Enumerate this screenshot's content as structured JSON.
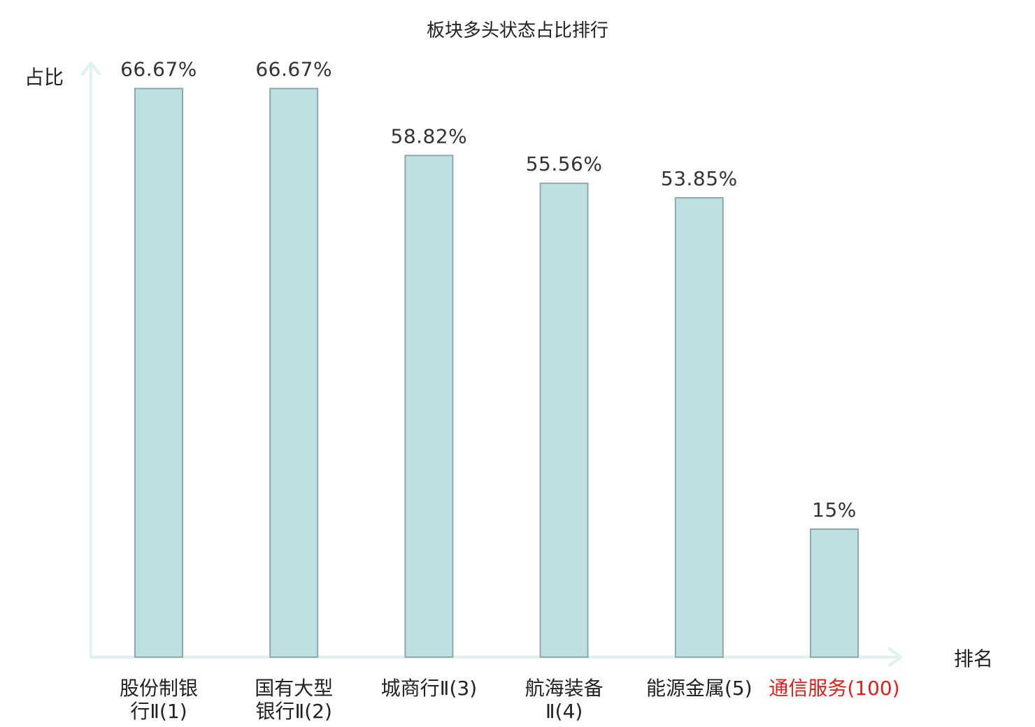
{
  "chart_data": {
    "type": "bar",
    "title": "板块多头状态占比排行",
    "ylabel": "占比",
    "xlabel": "排名",
    "ylim": [
      0,
      70
    ],
    "grid": false,
    "legend": "none",
    "categories": [
      {
        "name": "股份制银行Ⅱ",
        "rank": "(1)",
        "lines": [
          "股份制银",
          "行Ⅱ(1)"
        ],
        "highlight": false
      },
      {
        "name": "国有大型银行Ⅱ",
        "rank": "(2)",
        "lines": [
          "国有大型",
          "银行Ⅱ(2)"
        ],
        "highlight": false
      },
      {
        "name": "城商行Ⅱ",
        "rank": "(3)",
        "lines": [
          "城商行Ⅱ(3)"
        ],
        "highlight": false
      },
      {
        "name": "航海装备Ⅱ",
        "rank": "(4)",
        "lines": [
          "航海装备",
          "Ⅱ(4)"
        ],
        "highlight": false
      },
      {
        "name": "能源金属",
        "rank": "(5)",
        "lines": [
          "能源金属(5)"
        ],
        "highlight": false
      },
      {
        "name": "通信服务",
        "rank": "(100)",
        "lines": [
          "通信服务(100)"
        ],
        "highlight": true
      }
    ],
    "values": [
      66.67,
      66.67,
      58.82,
      55.56,
      53.85,
      15
    ],
    "value_labels": [
      "66.67%",
      "66.67%",
      "58.82%",
      "55.56%",
      "53.85%",
      "15%"
    ]
  },
  "colors": {
    "bar_fill": "#bde1e3",
    "bar_stroke": "#8fa9aa",
    "axis": "#dff2ef",
    "text": "#222222",
    "highlight": "#e0201b"
  }
}
